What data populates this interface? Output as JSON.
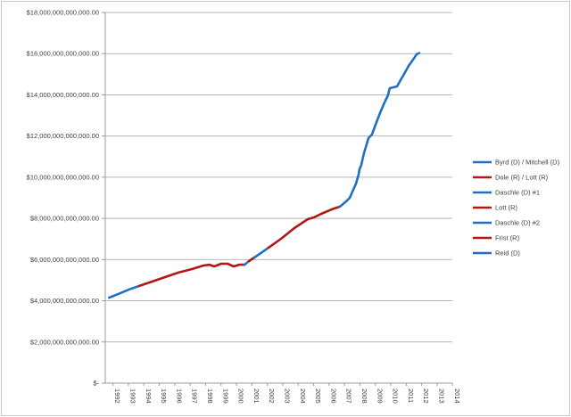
{
  "colors": {
    "dem_blue": "#1f6fc4",
    "rep_red": "#b21717",
    "gridline": "#b7b7b7",
    "axis": "#999999",
    "label_text": "#3f3f3f",
    "frame": "#c9c9c9",
    "background": "#ffffff"
  },
  "chart_data": {
    "type": "line",
    "title": "",
    "subject": "US national public debt over time, colored by Senate majority leader",
    "units": "USD",
    "value_scale": "trillions",
    "grid": "horizontal-on",
    "y_axis": {
      "tick_labels": [
        "$18,000,000,000,000.00",
        "$16,000,000,000,000.00",
        "$14,000,000,000,000.00",
        "$12,000,000,000,000.00",
        "$10,000,000,000,000.00",
        "$8,000,000,000,000.00",
        "$6,000,000,000,000.00",
        "$4,000,000,000,000.00",
        "$2,000,000,000,000.00",
        "$-"
      ],
      "tick_values_trillions": [
        18,
        16,
        14,
        12,
        10,
        8,
        6,
        4,
        2,
        0
      ],
      "min_trillions": 0,
      "max_trillions": 18
    },
    "x_axis": {
      "labels": [
        "1992",
        "1993",
        "1994",
        "1995",
        "1996",
        "1997",
        "1998",
        "1999",
        "2000",
        "2001",
        "2002",
        "2003",
        "2004",
        "2005",
        "2006",
        "2007",
        "2008",
        "2009",
        "2010",
        "2011",
        "2012",
        "2013",
        "2014"
      ],
      "label_rotation_deg": 90,
      "range_years": [
        1991.75,
        2014.3
      ]
    },
    "legend": {
      "position": "right",
      "entries": [
        {
          "label": "Byrd (D) / Mitchell (D)",
          "party": "D",
          "color": "#1f6fc4"
        },
        {
          "label": "Dole (R) / Lott (R)",
          "party": "R",
          "color": "#b21717"
        },
        {
          "label": "Daschle (D) #1",
          "party": "D",
          "color": "#1f6fc4"
        },
        {
          "label": "Lott (R)",
          "party": "R",
          "color": "#b21717"
        },
        {
          "label": "Daschle (D) #2",
          "party": "D",
          "color": "#1f6fc4"
        },
        {
          "label": "Frist (R)",
          "party": "R",
          "color": "#b21717"
        },
        {
          "label": "Reid (D)",
          "party": "D",
          "color": "#1f6fc4"
        }
      ]
    },
    "series": [
      {
        "name": "Byrd (D) / Mitchell (D)",
        "party": "D",
        "color": "#1f6fc4",
        "points": [
          [
            1992.0,
            4.15
          ],
          [
            1992.6,
            4.33
          ],
          [
            1993.3,
            4.55
          ],
          [
            1993.95,
            4.72
          ]
        ]
      },
      {
        "name": "Dole (R) / Lott (R)",
        "party": "R",
        "color": "#b21717",
        "points": [
          [
            1993.95,
            4.72
          ],
          [
            1994.76,
            4.93
          ],
          [
            1995.62,
            5.15
          ],
          [
            1996.49,
            5.37
          ],
          [
            1997.36,
            5.54
          ],
          [
            1998.11,
            5.71
          ],
          [
            1998.51,
            5.75
          ],
          [
            1998.8,
            5.67
          ],
          [
            1999.26,
            5.8
          ],
          [
            1999.67,
            5.8
          ],
          [
            2000.07,
            5.67
          ],
          [
            2000.42,
            5.75
          ],
          [
            2000.77,
            5.75
          ]
        ]
      },
      {
        "name": "Daschle (D) #1",
        "party": "D",
        "color": "#1f6fc4",
        "points": [
          [
            2000.77,
            5.75
          ],
          [
            2001.06,
            5.93
          ]
        ]
      },
      {
        "name": "Lott (R)",
        "party": "R",
        "color": "#b21717",
        "points": [
          [
            2001.06,
            5.93
          ],
          [
            2001.41,
            6.1
          ]
        ]
      },
      {
        "name": "Daschle (D) #2",
        "party": "D",
        "color": "#1f6fc4",
        "points": [
          [
            2001.41,
            6.1
          ],
          [
            2001.9,
            6.35
          ],
          [
            2002.33,
            6.58
          ]
        ]
      },
      {
        "name": "Frist (R)",
        "party": "R",
        "color": "#b21717",
        "points": [
          [
            2002.33,
            6.58
          ],
          [
            2003.14,
            7.01
          ],
          [
            2004.0,
            7.53
          ],
          [
            2004.87,
            7.96
          ],
          [
            2005.27,
            8.05
          ],
          [
            2005.74,
            8.22
          ],
          [
            2006.43,
            8.44
          ],
          [
            2006.95,
            8.57
          ]
        ]
      },
      {
        "name": "Reid (D)",
        "party": "D",
        "color": "#1f6fc4",
        "points": [
          [
            2006.95,
            8.57
          ],
          [
            2007.36,
            8.83
          ],
          [
            2007.59,
            9.0
          ],
          [
            2007.76,
            9.3
          ],
          [
            2007.99,
            9.69
          ],
          [
            2008.16,
            10.12
          ],
          [
            2008.22,
            10.38
          ],
          [
            2008.34,
            10.6
          ],
          [
            2008.51,
            11.16
          ],
          [
            2008.8,
            11.9
          ],
          [
            2009.03,
            12.07
          ],
          [
            2009.26,
            12.55
          ],
          [
            2009.55,
            13.11
          ],
          [
            2009.84,
            13.63
          ],
          [
            2010.07,
            13.98
          ],
          [
            2010.18,
            14.32
          ],
          [
            2010.65,
            14.41
          ],
          [
            2010.88,
            14.71
          ],
          [
            2011.11,
            15.01
          ],
          [
            2011.4,
            15.4
          ],
          [
            2011.69,
            15.71
          ],
          [
            2011.92,
            15.97
          ],
          [
            2012.09,
            16.03
          ]
        ]
      }
    ]
  }
}
